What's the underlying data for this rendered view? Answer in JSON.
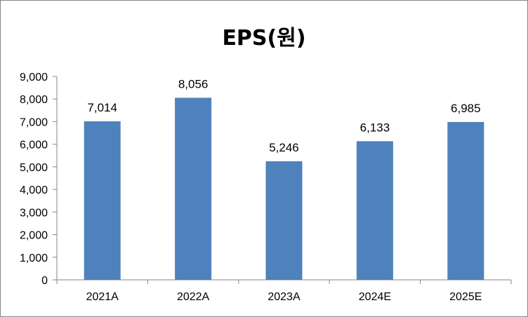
{
  "chart_data": {
    "type": "bar",
    "title": "EPS(원)",
    "categories": [
      "2021A",
      "2022A",
      "2023A",
      "2024E",
      "2025E"
    ],
    "values": [
      7014,
      8056,
      5246,
      6133,
      6985
    ],
    "data_labels": [
      "7,014",
      "8,056",
      "5,246",
      "6,133",
      "6,985"
    ],
    "ylim": [
      0,
      9000
    ],
    "yticks": [
      0,
      1000,
      2000,
      3000,
      4000,
      5000,
      6000,
      7000,
      8000,
      9000
    ],
    "ytick_labels": [
      "0",
      "1,000",
      "2,000",
      "3,000",
      "4,000",
      "5,000",
      "6,000",
      "7,000",
      "8,000",
      "9,000"
    ],
    "xlabel": "",
    "ylabel": "",
    "grid": false,
    "legend": false,
    "bar_color": "#4f81bd"
  }
}
